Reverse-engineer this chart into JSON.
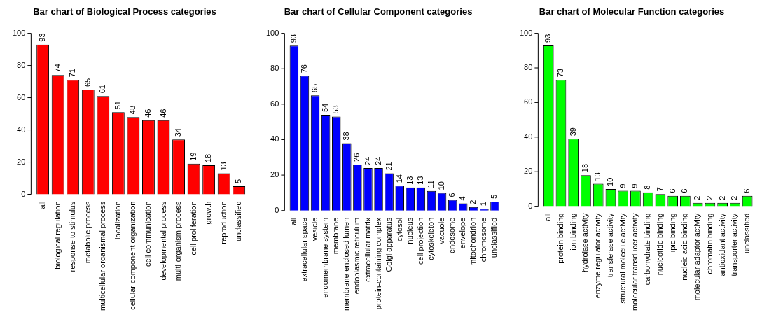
{
  "chart_data": [
    {
      "type": "bar",
      "title": "Bar chart of Biological Process categories",
      "categories": [
        "all",
        "biological regulation",
        "response to stimulus",
        "metabolic process",
        "multicellular organismal process",
        "localization",
        "cellular component organization",
        "cell communication",
        "developmental process",
        "multi-organism process",
        "cell proliferation",
        "growth",
        "reproduction",
        "unclassified"
      ],
      "values": [
        93,
        74,
        71,
        65,
        61,
        51,
        48,
        46,
        46,
        34,
        19,
        18,
        13,
        5
      ],
      "color": "#ff0000",
      "ylim": [
        0,
        100
      ],
      "yticks": [
        0,
        20,
        40,
        60,
        80,
        100
      ],
      "data_labels": true,
      "grid": false
    },
    {
      "type": "bar",
      "title": "Bar chart of Cellular Component categories",
      "categories": [
        "all",
        "extracellular space",
        "vesicle",
        "endomembrane system",
        "membrane",
        "membrane-enclosed lumen",
        "endoplasmic reticulum",
        "extracellular matrix",
        "protein-containing complex",
        "Golgi apparatus",
        "cytosol",
        "nucleus",
        "cell projection",
        "cytoskeleton",
        "vacuole",
        "endosome",
        "envelope",
        "mitochondrion",
        "chromosome",
        "unclassified"
      ],
      "values": [
        93,
        76,
        65,
        54,
        53,
        38,
        26,
        24,
        24,
        21,
        14,
        13,
        13,
        11,
        10,
        6,
        4,
        2,
        1,
        5
      ],
      "color": "#0000ff",
      "ylim": [
        0,
        100
      ],
      "yticks": [
        0,
        20,
        40,
        60,
        80,
        100
      ],
      "data_labels": true,
      "grid": false
    },
    {
      "type": "bar",
      "title": "Bar chart of Molecular Function categories",
      "categories": [
        "all",
        "protein binding",
        "ion binding",
        "hydrolase activity",
        "enzyme regulator activity",
        "transferase activity",
        "structural molecule activity",
        "molecular transducer activity",
        "carbohydrate binding",
        "nucleotide binding",
        "lipid binding",
        "nucleic acid binding",
        "molecular adaptor activity",
        "chromatin binding",
        "antioxidant activity",
        "transporter activity",
        "unclassified"
      ],
      "values": [
        93,
        73,
        39,
        18,
        13,
        10,
        9,
        9,
        8,
        7,
        6,
        6,
        2,
        2,
        2,
        2,
        6
      ],
      "color": "#00ff00",
      "ylim": [
        0,
        100
      ],
      "yticks": [
        0,
        20,
        40,
        60,
        80,
        100
      ],
      "data_labels": true,
      "grid": false
    }
  ]
}
